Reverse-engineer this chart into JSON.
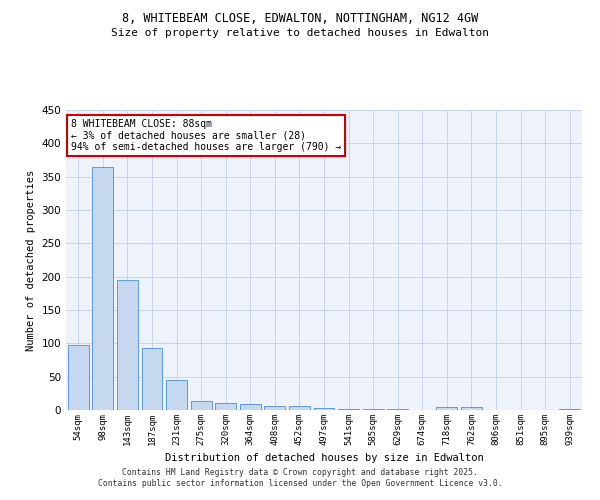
{
  "title_line1": "8, WHITEBEAM CLOSE, EDWALTON, NOTTINGHAM, NG12 4GW",
  "title_line2": "Size of property relative to detached houses in Edwalton",
  "xlabel": "Distribution of detached houses by size in Edwalton",
  "ylabel": "Number of detached properties",
  "bar_labels": [
    "54sqm",
    "98sqm",
    "143sqm",
    "187sqm",
    "231sqm",
    "275sqm",
    "320sqm",
    "364sqm",
    "408sqm",
    "452sqm",
    "497sqm",
    "541sqm",
    "585sqm",
    "629sqm",
    "674sqm",
    "718sqm",
    "762sqm",
    "806sqm",
    "851sqm",
    "895sqm",
    "939sqm"
  ],
  "bar_values": [
    98,
    365,
    195,
    93,
    45,
    13,
    10,
    9,
    6,
    6,
    3,
    1,
    1,
    1,
    0,
    5,
    4,
    0,
    0,
    0,
    2
  ],
  "bar_color": "#c5d8f0",
  "bar_edge_color": "#5b9bd5",
  "annotation_text": "8 WHITEBEAM CLOSE: 88sqm\n← 3% of detached houses are smaller (28)\n94% of semi-detached houses are larger (790) →",
  "annotation_box_color": "#ffffff",
  "annotation_box_edge_color": "#cc0000",
  "ylim": [
    0,
    450
  ],
  "yticks": [
    0,
    50,
    100,
    150,
    200,
    250,
    300,
    350,
    400,
    450
  ],
  "bg_color": "#eef2fb",
  "grid_color": "#c8d4ea",
  "footer_text": "Contains HM Land Registry data © Crown copyright and database right 2025.\nContains public sector information licensed under the Open Government Licence v3.0."
}
